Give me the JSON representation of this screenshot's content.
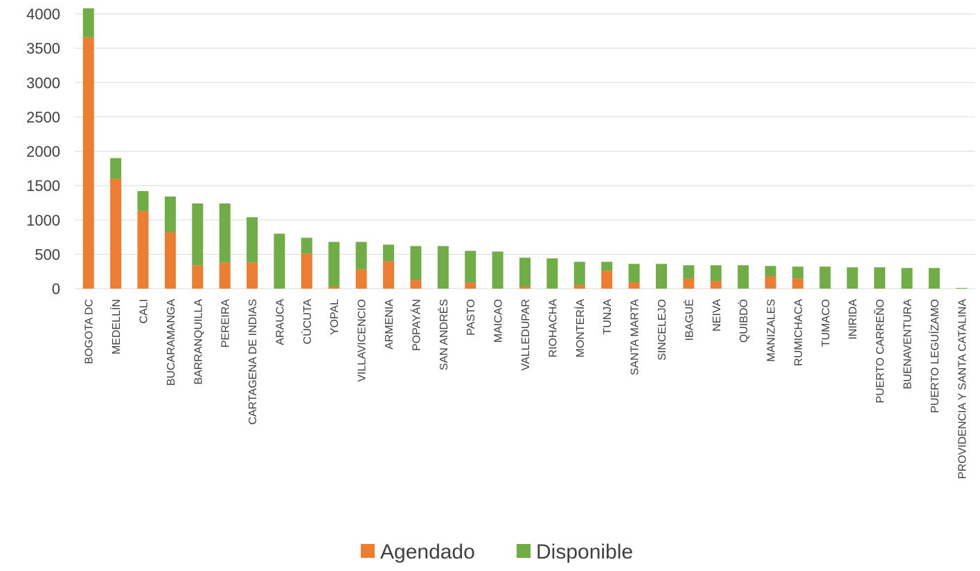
{
  "chart_data": {
    "type": "bar",
    "stacked": true,
    "title": "",
    "xlabel": "",
    "ylabel": "",
    "ylim": [
      0,
      4000
    ],
    "yticks": [
      0,
      500,
      1000,
      1500,
      2000,
      2500,
      3000,
      3500,
      4000
    ],
    "grid": true,
    "legend_position": "bottom",
    "categories": [
      "BOGOTA DC",
      "MEDELLÍN",
      "CALI",
      "BUCARAMANGA",
      "BARRANQUILLA",
      "PEREIRA",
      "CARTAGENA DE INDIAS",
      "ARAUCA",
      "CÚCUTA",
      "YOPAL",
      "VILLAVICENCIO",
      "ARMENIA",
      "POPAYÁN",
      "SAN ANDRÉS",
      "PASTO",
      "MAICAO",
      "VALLEDUPAR",
      "RIOHACHA",
      "MONTERÍA",
      "TUNJA",
      "SANTA MARTA",
      "SINCELEJO",
      "IBAGUÉ",
      "NEIVA",
      "QUIBDÓ",
      "MANIZALES",
      "RUMICHACA",
      "TUMACO",
      "INIRIDA",
      "PUERTO CARREÑO",
      "BUENAVENTURA",
      "PUERTO LEGUÍZAMO",
      "PROVIDENCIA Y SANTA CATALINA"
    ],
    "series": [
      {
        "name": "Agendado",
        "color": "#ED7D31",
        "values": [
          3660,
          1600,
          1130,
          820,
          340,
          380,
          380,
          0,
          510,
          30,
          280,
          400,
          120,
          0,
          90,
          0,
          30,
          0,
          50,
          260,
          90,
          0,
          150,
          110,
          0,
          180,
          150,
          0,
          0,
          0,
          0,
          0,
          0
        ]
      },
      {
        "name": "Disponible",
        "color": "#70AD47",
        "values": [
          420,
          300,
          290,
          520,
          900,
          860,
          660,
          800,
          230,
          650,
          400,
          240,
          500,
          620,
          460,
          540,
          420,
          440,
          340,
          130,
          270,
          360,
          190,
          230,
          340,
          150,
          170,
          320,
          310,
          310,
          300,
          300,
          10
        ]
      }
    ]
  }
}
